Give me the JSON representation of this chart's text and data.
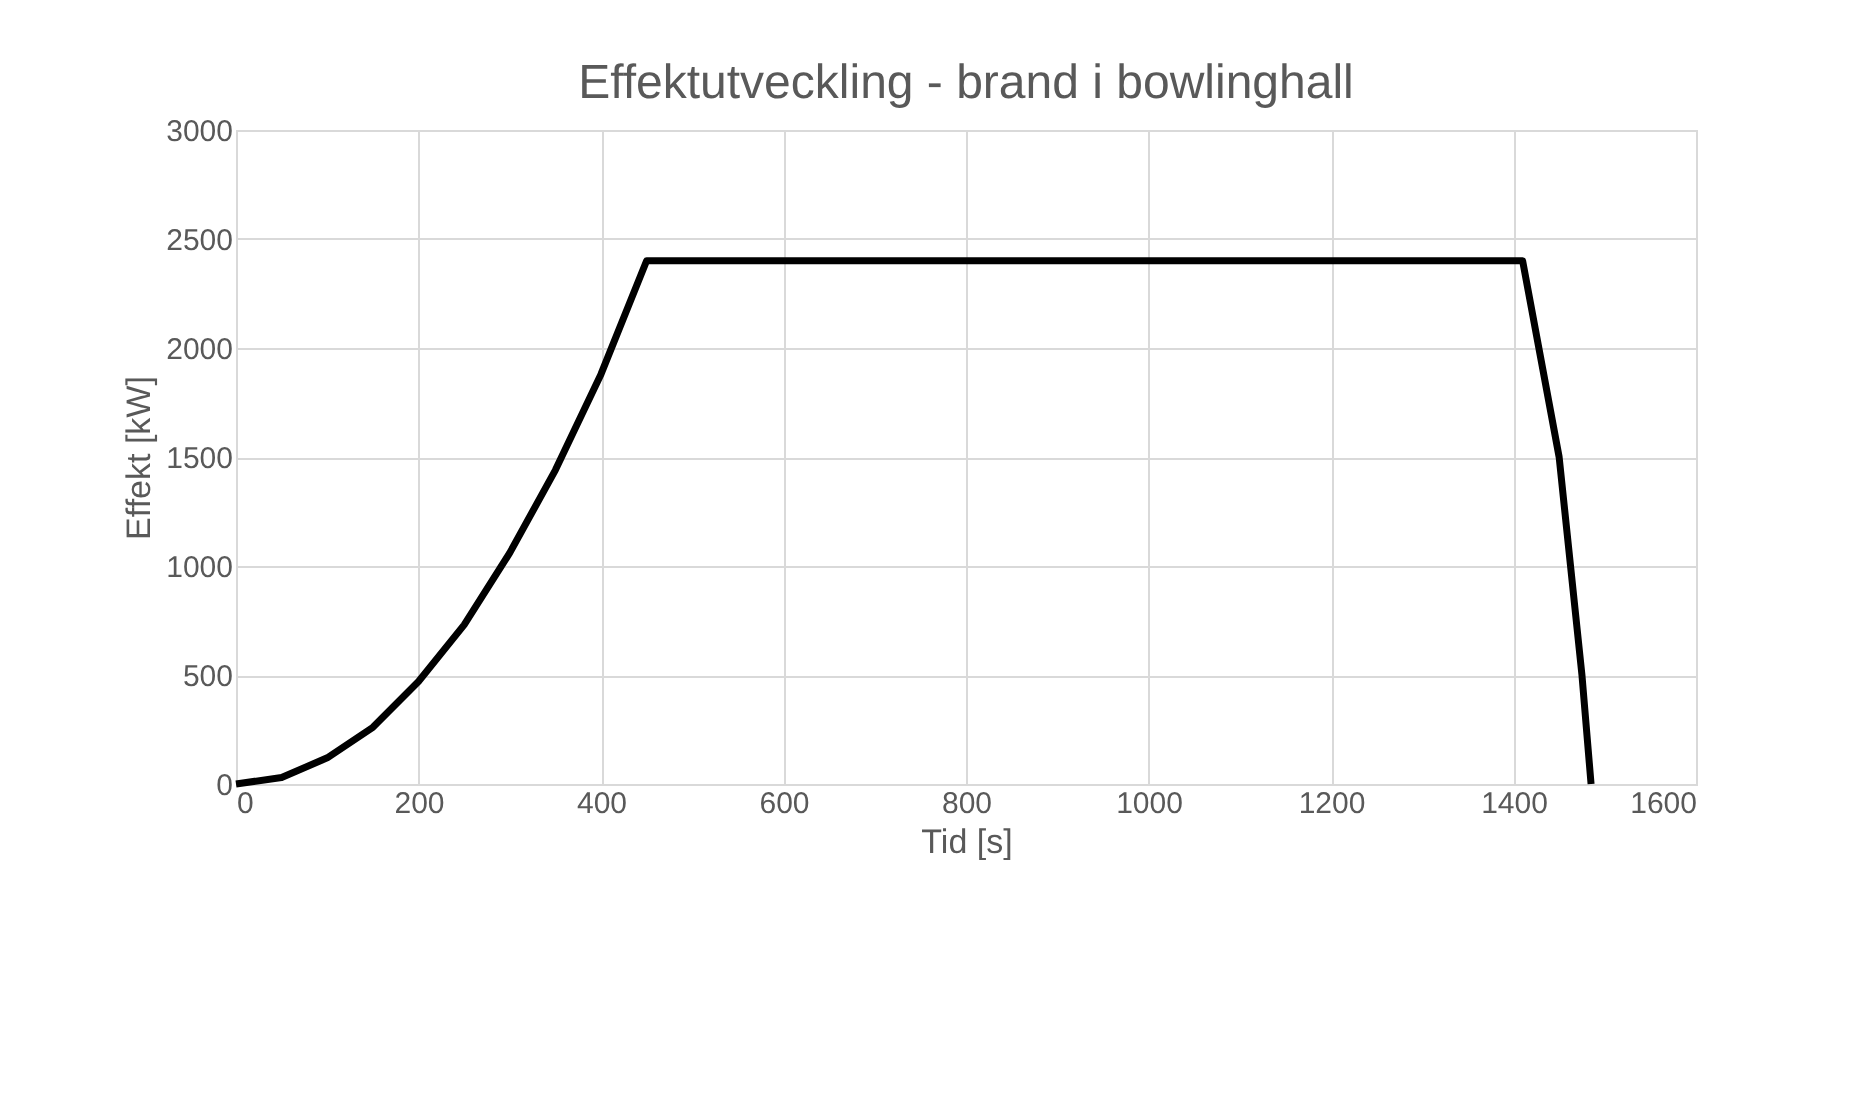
{
  "chart_data": {
    "type": "line",
    "title": "Effektutveckling - brand i bowlinghall",
    "xlabel": "Tid [s]",
    "ylabel": "Effekt [kW]",
    "x": [
      0,
      50,
      100,
      150,
      200,
      250,
      300,
      350,
      400,
      450,
      1410,
      1450,
      1475,
      1485
    ],
    "series": [
      {
        "color": "#000000",
        "values": [
          0,
          30,
          120,
          260,
          470,
          730,
          1060,
          1440,
          1880,
          2400,
          2400,
          1500,
          500,
          0
        ]
      }
    ],
    "xlim": [
      0,
      1600
    ],
    "xticks": [
      0,
      200,
      400,
      600,
      800,
      1000,
      1200,
      1400,
      1600
    ],
    "ylim": [
      0,
      3000
    ],
    "yticks": [
      0,
      500,
      1000,
      1500,
      2000,
      2500,
      3000
    ],
    "grid": true,
    "marker": "none",
    "line_style": "solid"
  }
}
